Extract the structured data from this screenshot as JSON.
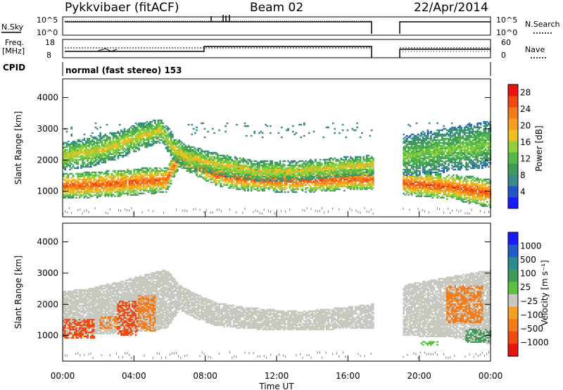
{
  "header": {
    "radar": "Pykkvibaer (fitACF)",
    "beam": "Beam 02",
    "date": "22/Apr/2014"
  },
  "strips": {
    "nsky": {
      "label": "N.Sky",
      "ticks": [
        "10^5",
        "10^0"
      ],
      "right_label": "N.Search",
      "right_ticks": [
        "10^5",
        "10^0"
      ]
    },
    "freq": {
      "label": "Freq.",
      "unit": "[MHz]",
      "ticks": [
        "18",
        "8"
      ],
      "right_label": "Nave",
      "right_ticks": [
        "60",
        "0"
      ]
    },
    "cpid": {
      "label": "CPID",
      "value": "normal (fast stereo) 153"
    }
  },
  "colors": {
    "power": [
      "#1a1aff",
      "#2255cc",
      "#3b8a8a",
      "#3f9a5a",
      "#55b84a",
      "#8ed13c",
      "#f0c020",
      "#f5a020",
      "#f47b1a",
      "#f04a10",
      "#e8140f"
    ],
    "velocity": [
      "#1a1aff",
      "#1f5dc8",
      "#2a8c8c",
      "#3f9a5a",
      "#5cc040",
      "#c8c8c0",
      "#f5a020",
      "#f47b1a",
      "#f04a10",
      "#e8140f"
    ]
  },
  "chart_data": [
    {
      "type": "heatmap",
      "panel": "power",
      "xlabel": "Time UT",
      "ylabel": "Slant Range [km]",
      "x_ticks": [
        "00:00",
        "04:00",
        "08:00",
        "12:00",
        "16:00",
        "20:00",
        "00:00"
      ],
      "y_ticks": [
        "1000",
        "2000",
        "3000",
        "4000"
      ],
      "xlim_hours": [
        0,
        24
      ],
      "ylim_km": [
        180,
        4600
      ],
      "colorbar": {
        "label": "Power [dB]",
        "ticks": [
          "28",
          "24",
          "20",
          "16",
          "12",
          "8",
          "4"
        ],
        "range": [
          0,
          30
        ]
      },
      "data_gap_hours": [
        17.5,
        19.0
      ],
      "echo_bands": [
        {
          "t": [
            0,
            1.5,
            3,
            5,
            5.8,
            6.5,
            7.5,
            8.5,
            10,
            12,
            14,
            16,
            17.4
          ],
          "lower_km": [
            1000,
            1000,
            1050,
            1150,
            1200,
            2000,
            1700,
            1400,
            1250,
            1200,
            1200,
            1250,
            1250
          ],
          "upper_km": [
            1300,
            1350,
            1400,
            1500,
            1500,
            2200,
            2000,
            1650,
            1500,
            1400,
            1450,
            1450,
            1450
          ],
          "peak_db": 26
        },
        {
          "t": [
            0,
            1.5,
            3,
            4.5,
            5.5,
            6.2,
            7,
            8,
            9.5,
            11,
            13,
            15,
            17.4
          ],
          "lower_km": [
            1900,
            2000,
            2250,
            2600,
            2800,
            2200,
            1900,
            1800,
            1650,
            1550,
            1550,
            1650,
            1750
          ],
          "upper_km": [
            2300,
            2450,
            2650,
            2950,
            3050,
            2500,
            2200,
            2050,
            1850,
            1700,
            1700,
            1800,
            1900
          ],
          "peak_db": 18
        },
        {
          "t": [
            19.0,
            20,
            21,
            22,
            23,
            24
          ],
          "lower_km": [
            1100,
            1050,
            1000,
            950,
            800,
            700
          ],
          "upper_km": [
            1400,
            1350,
            1300,
            1250,
            1200,
            1100
          ],
          "peak_db": 27
        },
        {
          "t": [
            19.0,
            20,
            21,
            22,
            23,
            24
          ],
          "lower_km": [
            1700,
            1750,
            1800,
            1900,
            1900,
            2000
          ],
          "upper_km": [
            2500,
            2600,
            2700,
            2800,
            2900,
            3000
          ],
          "peak_db": 14
        }
      ]
    },
    {
      "type": "heatmap",
      "panel": "velocity",
      "xlabel": "Time UT",
      "ylabel": "Slant Range [km]",
      "x_ticks": [
        "00:00",
        "04:00",
        "08:00",
        "12:00",
        "16:00",
        "20:00",
        "00:00"
      ],
      "y_ticks": [
        "1000",
        "2000",
        "3000",
        "4000"
      ],
      "xlim_hours": [
        0,
        24
      ],
      "ylim_km": [
        180,
        4600
      ],
      "colorbar": {
        "label": "Velocity [m s⁻¹]",
        "ticks": [
          "1000",
          "500",
          "100",
          "25",
          "−25",
          "−100",
          "−500",
          "−1000"
        ]
      },
      "data_gap_hours": [
        17.5,
        19.0
      ],
      "echo_bands": [
        {
          "t": [
            0,
            1.5,
            3,
            5,
            5.8,
            6.5,
            7.5,
            8.5,
            10,
            12,
            14,
            16,
            17.4
          ],
          "lower_km": [
            1000,
            1000,
            1050,
            1150,
            1200,
            1800,
            1500,
            1300,
            1200,
            1150,
            1150,
            1200,
            1200
          ],
          "upper_km": [
            2400,
            2500,
            2700,
            3000,
            3100,
            2600,
            2300,
            2050,
            1900,
            1800,
            1800,
            1900,
            2000
          ],
          "velocity": 0
        },
        {
          "t": [
            19.0,
            20,
            21,
            22,
            23,
            24
          ],
          "lower_km": [
            1000,
            950,
            950,
            900,
            800,
            700
          ],
          "upper_km": [
            2600,
            2700,
            2800,
            2900,
            3000,
            3100
          ],
          "velocity": 0
        }
      ],
      "velocity_patches": [
        {
          "t": [
            0.0,
            1.8
          ],
          "km": [
            900,
            1500
          ],
          "velocity": -500
        },
        {
          "t": [
            2.0,
            3.0
          ],
          "km": [
            1200,
            1600
          ],
          "velocity": -300
        },
        {
          "t": [
            3.0,
            4.2
          ],
          "km": [
            1000,
            2100
          ],
          "velocity": -500
        },
        {
          "t": [
            4.2,
            5.2
          ],
          "km": [
            1100,
            2300
          ],
          "velocity": -300
        },
        {
          "t": [
            21.5,
            23.5
          ],
          "km": [
            1400,
            2600
          ],
          "velocity": -150
        },
        {
          "t": [
            22.5,
            24.0
          ],
          "km": [
            750,
            1200
          ],
          "velocity": 150
        },
        {
          "t": [
            20.0,
            21.0
          ],
          "km": [
            650,
            800
          ],
          "velocity": 80
        }
      ]
    }
  ]
}
